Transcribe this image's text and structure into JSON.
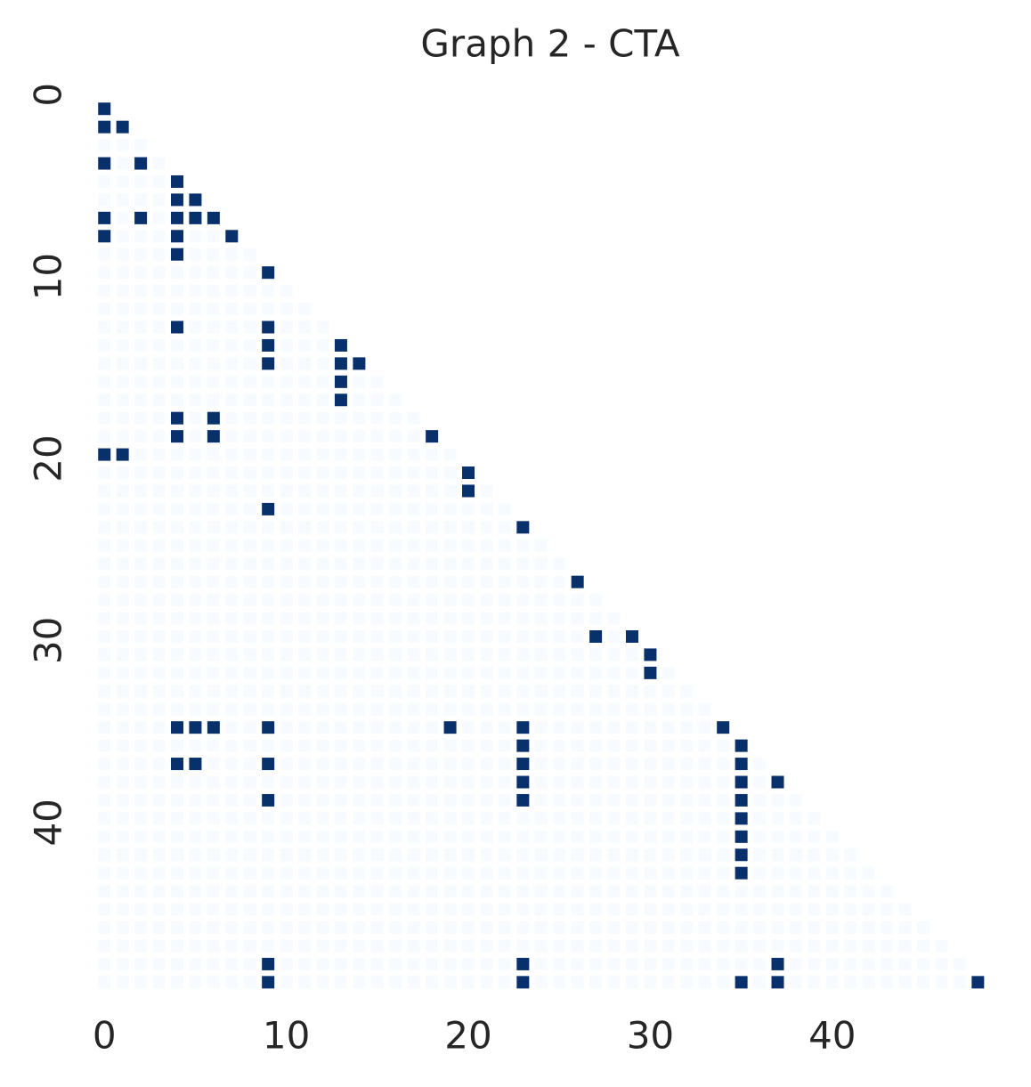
{
  "chart_data": {
    "type": "heatmap",
    "title": "Graph 2 - CTA",
    "colors": [
      "#f7fbff",
      "#08306b"
    ],
    "xticks": [
      0,
      10,
      20,
      30,
      40
    ],
    "yticks": [
      0,
      10,
      20,
      30,
      40
    ],
    "z": [
      [
        1
      ],
      [
        1,
        1
      ],
      [
        0,
        0,
        0
      ],
      [
        1,
        0,
        1,
        0
      ],
      [
        0,
        0,
        0,
        0,
        1
      ],
      [
        0,
        0,
        0,
        0,
        1,
        1
      ],
      [
        1,
        0,
        1,
        0,
        1,
        1,
        1
      ],
      [
        1,
        0,
        0,
        0,
        1,
        0,
        0,
        1
      ],
      [
        0,
        0,
        0,
        0,
        1,
        0,
        0,
        0,
        0
      ],
      [
        0,
        0,
        0,
        0,
        0,
        0,
        0,
        0,
        0,
        1
      ],
      [
        0,
        0,
        0,
        0,
        0,
        0,
        0,
        0,
        0,
        0,
        0
      ],
      [
        0,
        0,
        0,
        0,
        0,
        0,
        0,
        0,
        0,
        0,
        0,
        0
      ],
      [
        0,
        0,
        0,
        0,
        1,
        0,
        0,
        0,
        0,
        1,
        0,
        0,
        0
      ],
      [
        0,
        0,
        0,
        0,
        0,
        0,
        0,
        0,
        0,
        1,
        0,
        0,
        0,
        1
      ],
      [
        0,
        0,
        0,
        0,
        0,
        0,
        0,
        0,
        0,
        1,
        0,
        0,
        0,
        1,
        1
      ],
      [
        0,
        0,
        0,
        0,
        0,
        0,
        0,
        0,
        0,
        0,
        0,
        0,
        0,
        1,
        0,
        0
      ],
      [
        0,
        0,
        0,
        0,
        0,
        0,
        0,
        0,
        0,
        0,
        0,
        0,
        0,
        1,
        0,
        0,
        0
      ],
      [
        0,
        0,
        0,
        0,
        1,
        0,
        1,
        0,
        0,
        0,
        0,
        0,
        0,
        0,
        0,
        0,
        0,
        0
      ],
      [
        0,
        0,
        0,
        0,
        1,
        0,
        1,
        0,
        0,
        0,
        0,
        0,
        0,
        0,
        0,
        0,
        0,
        0,
        1
      ],
      [
        1,
        1,
        0,
        0,
        0,
        0,
        0,
        0,
        0,
        0,
        0,
        0,
        0,
        0,
        0,
        0,
        0,
        0,
        0,
        0
      ],
      [
        0,
        0,
        0,
        0,
        0,
        0,
        0,
        0,
        0,
        0,
        0,
        0,
        0,
        0,
        0,
        0,
        0,
        0,
        0,
        0,
        1
      ],
      [
        0,
        0,
        0,
        0,
        0,
        0,
        0,
        0,
        0,
        0,
        0,
        0,
        0,
        0,
        0,
        0,
        0,
        0,
        0,
        0,
        1,
        0
      ],
      [
        0,
        0,
        0,
        0,
        0,
        0,
        0,
        0,
        0,
        1,
        0,
        0,
        0,
        0,
        0,
        0,
        0,
        0,
        0,
        0,
        0,
        0,
        0
      ],
      [
        0,
        0,
        0,
        0,
        0,
        0,
        0,
        0,
        0,
        0,
        0,
        0,
        0,
        0,
        0,
        0,
        0,
        0,
        0,
        0,
        0,
        0,
        0,
        1
      ],
      [
        0,
        0,
        0,
        0,
        0,
        0,
        0,
        0,
        0,
        0,
        0,
        0,
        0,
        0,
        0,
        0,
        0,
        0,
        0,
        0,
        0,
        0,
        0,
        0,
        0
      ],
      [
        0,
        0,
        0,
        0,
        0,
        0,
        0,
        0,
        0,
        0,
        0,
        0,
        0,
        0,
        0,
        0,
        0,
        0,
        0,
        0,
        0,
        0,
        0,
        0,
        0,
        0
      ],
      [
        0,
        0,
        0,
        0,
        0,
        0,
        0,
        0,
        0,
        0,
        0,
        0,
        0,
        0,
        0,
        0,
        0,
        0,
        0,
        0,
        0,
        0,
        0,
        0,
        0,
        0,
        1
      ],
      [
        0,
        0,
        0,
        0,
        0,
        0,
        0,
        0,
        0,
        0,
        0,
        0,
        0,
        0,
        0,
        0,
        0,
        0,
        0,
        0,
        0,
        0,
        0,
        0,
        0,
        0,
        0,
        0
      ],
      [
        0,
        0,
        0,
        0,
        0,
        0,
        0,
        0,
        0,
        0,
        0,
        0,
        0,
        0,
        0,
        0,
        0,
        0,
        0,
        0,
        0,
        0,
        0,
        0,
        0,
        0,
        0,
        0,
        0
      ],
      [
        0,
        0,
        0,
        0,
        0,
        0,
        0,
        0,
        0,
        0,
        0,
        0,
        0,
        0,
        0,
        0,
        0,
        0,
        0,
        0,
        0,
        0,
        0,
        0,
        0,
        0,
        0,
        1,
        0,
        1
      ],
      [
        0,
        0,
        0,
        0,
        0,
        0,
        0,
        0,
        0,
        0,
        0,
        0,
        0,
        0,
        0,
        0,
        0,
        0,
        0,
        0,
        0,
        0,
        0,
        0,
        0,
        0,
        0,
        0,
        0,
        0,
        1
      ],
      [
        0,
        0,
        0,
        0,
        0,
        0,
        0,
        0,
        0,
        0,
        0,
        0,
        0,
        0,
        0,
        0,
        0,
        0,
        0,
        0,
        0,
        0,
        0,
        0,
        0,
        0,
        0,
        0,
        0,
        0,
        1,
        0
      ],
      [
        0,
        0,
        0,
        0,
        0,
        0,
        0,
        0,
        0,
        0,
        0,
        0,
        0,
        0,
        0,
        0,
        0,
        0,
        0,
        0,
        0,
        0,
        0,
        0,
        0,
        0,
        0,
        0,
        0,
        0,
        0,
        0,
        0
      ],
      [
        0,
        0,
        0,
        0,
        0,
        0,
        0,
        0,
        0,
        0,
        0,
        0,
        0,
        0,
        0,
        0,
        0,
        0,
        0,
        0,
        0,
        0,
        0,
        0,
        0,
        0,
        0,
        0,
        0,
        0,
        0,
        0,
        0,
        0
      ],
      [
        0,
        0,
        0,
        0,
        1,
        1,
        1,
        0,
        0,
        1,
        0,
        0,
        0,
        0,
        0,
        0,
        0,
        0,
        0,
        1,
        0,
        0,
        0,
        1,
        0,
        0,
        0,
        0,
        0,
        0,
        0,
        0,
        0,
        0,
        1
      ],
      [
        0,
        0,
        0,
        0,
        0,
        0,
        0,
        0,
        0,
        0,
        0,
        0,
        0,
        0,
        0,
        0,
        0,
        0,
        0,
        0,
        0,
        0,
        0,
        1,
        0,
        0,
        0,
        0,
        0,
        0,
        0,
        0,
        0,
        0,
        0,
        1
      ],
      [
        0,
        0,
        0,
        0,
        1,
        1,
        0,
        0,
        0,
        1,
        0,
        0,
        0,
        0,
        0,
        0,
        0,
        0,
        0,
        0,
        0,
        0,
        0,
        1,
        0,
        0,
        0,
        0,
        0,
        0,
        0,
        0,
        0,
        0,
        0,
        1,
        0
      ],
      [
        0,
        0,
        0,
        0,
        0,
        0,
        0,
        0,
        0,
        0,
        0,
        0,
        0,
        0,
        0,
        0,
        0,
        0,
        0,
        0,
        0,
        0,
        0,
        1,
        0,
        0,
        0,
        0,
        0,
        0,
        0,
        0,
        0,
        0,
        0,
        1,
        0,
        1
      ],
      [
        0,
        0,
        0,
        0,
        0,
        0,
        0,
        0,
        0,
        1,
        0,
        0,
        0,
        0,
        0,
        0,
        0,
        0,
        0,
        0,
        0,
        0,
        0,
        1,
        0,
        0,
        0,
        0,
        0,
        0,
        0,
        0,
        0,
        0,
        0,
        1,
        0,
        0,
        0
      ],
      [
        0,
        0,
        0,
        0,
        0,
        0,
        0,
        0,
        0,
        0,
        0,
        0,
        0,
        0,
        0,
        0,
        0,
        0,
        0,
        0,
        0,
        0,
        0,
        0,
        0,
        0,
        0,
        0,
        0,
        0,
        0,
        0,
        0,
        0,
        0,
        1,
        0,
        0,
        0,
        0
      ],
      [
        0,
        0,
        0,
        0,
        0,
        0,
        0,
        0,
        0,
        0,
        0,
        0,
        0,
        0,
        0,
        0,
        0,
        0,
        0,
        0,
        0,
        0,
        0,
        0,
        0,
        0,
        0,
        0,
        0,
        0,
        0,
        0,
        0,
        0,
        0,
        1,
        0,
        0,
        0,
        0,
        0
      ],
      [
        0,
        0,
        0,
        0,
        0,
        0,
        0,
        0,
        0,
        0,
        0,
        0,
        0,
        0,
        0,
        0,
        0,
        0,
        0,
        0,
        0,
        0,
        0,
        0,
        0,
        0,
        0,
        0,
        0,
        0,
        0,
        0,
        0,
        0,
        0,
        1,
        0,
        0,
        0,
        0,
        0,
        0
      ],
      [
        0,
        0,
        0,
        0,
        0,
        0,
        0,
        0,
        0,
        0,
        0,
        0,
        0,
        0,
        0,
        0,
        0,
        0,
        0,
        0,
        0,
        0,
        0,
        0,
        0,
        0,
        0,
        0,
        0,
        0,
        0,
        0,
        0,
        0,
        0,
        1,
        0,
        0,
        0,
        0,
        0,
        0,
        0
      ],
      [
        0,
        0,
        0,
        0,
        0,
        0,
        0,
        0,
        0,
        0,
        0,
        0,
        0,
        0,
        0,
        0,
        0,
        0,
        0,
        0,
        0,
        0,
        0,
        0,
        0,
        0,
        0,
        0,
        0,
        0,
        0,
        0,
        0,
        0,
        0,
        0,
        0,
        0,
        0,
        0,
        0,
        0,
        0,
        0
      ],
      [
        0,
        0,
        0,
        0,
        0,
        0,
        0,
        0,
        0,
        0,
        0,
        0,
        0,
        0,
        0,
        0,
        0,
        0,
        0,
        0,
        0,
        0,
        0,
        0,
        0,
        0,
        0,
        0,
        0,
        0,
        0,
        0,
        0,
        0,
        0,
        0,
        0,
        0,
        0,
        0,
        0,
        0,
        0,
        0,
        0
      ],
      [
        0,
        0,
        0,
        0,
        0,
        0,
        0,
        0,
        0,
        0,
        0,
        0,
        0,
        0,
        0,
        0,
        0,
        0,
        0,
        0,
        0,
        0,
        0,
        0,
        0,
        0,
        0,
        0,
        0,
        0,
        0,
        0,
        0,
        0,
        0,
        0,
        0,
        0,
        0,
        0,
        0,
        0,
        0,
        0,
        0,
        0
      ],
      [
        0,
        0,
        0,
        0,
        0,
        0,
        0,
        0,
        0,
        0,
        0,
        0,
        0,
        0,
        0,
        0,
        0,
        0,
        0,
        0,
        0,
        0,
        0,
        0,
        0,
        0,
        0,
        0,
        0,
        0,
        0,
        0,
        0,
        0,
        0,
        0,
        0,
        0,
        0,
        0,
        0,
        0,
        0,
        0,
        0,
        0,
        0
      ],
      [
        0,
        0,
        0,
        0,
        0,
        0,
        0,
        0,
        0,
        1,
        0,
        0,
        0,
        0,
        0,
        0,
        0,
        0,
        0,
        0,
        0,
        0,
        0,
        1,
        0,
        0,
        0,
        0,
        0,
        0,
        0,
        0,
        0,
        0,
        0,
        0,
        0,
        1,
        0,
        0,
        0,
        0,
        0,
        0,
        0,
        0,
        0,
        0
      ],
      [
        0,
        0,
        0,
        0,
        0,
        0,
        0,
        0,
        0,
        1,
        0,
        0,
        0,
        0,
        0,
        0,
        0,
        0,
        0,
        0,
        0,
        0,
        0,
        1,
        0,
        0,
        0,
        0,
        0,
        0,
        0,
        0,
        0,
        0,
        0,
        1,
        0,
        1,
        0,
        0,
        0,
        0,
        0,
        0,
        0,
        0,
        0,
        0,
        1
      ]
    ]
  }
}
